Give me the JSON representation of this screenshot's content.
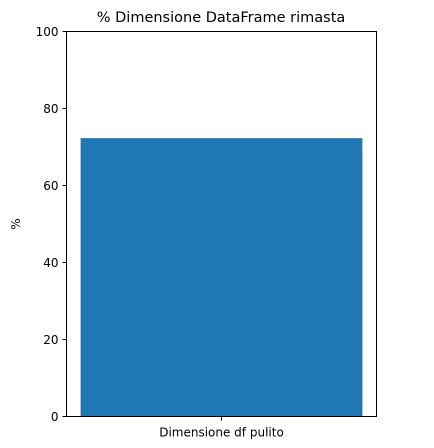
{
  "chart_data": {
    "type": "bar",
    "title": "% Dimensione DataFrame rimasta",
    "xlabel": "",
    "ylabel": "%",
    "categories": [
      "Dimensione df pulito"
    ],
    "values": [
      72.3
    ],
    "ylim": [
      0,
      100
    ],
    "yticks": [
      0,
      20,
      40,
      60,
      80,
      100
    ],
    "grid": false,
    "legend": "none",
    "colors": {
      "bar": "#1f77b4",
      "axes": "#000000"
    }
  }
}
